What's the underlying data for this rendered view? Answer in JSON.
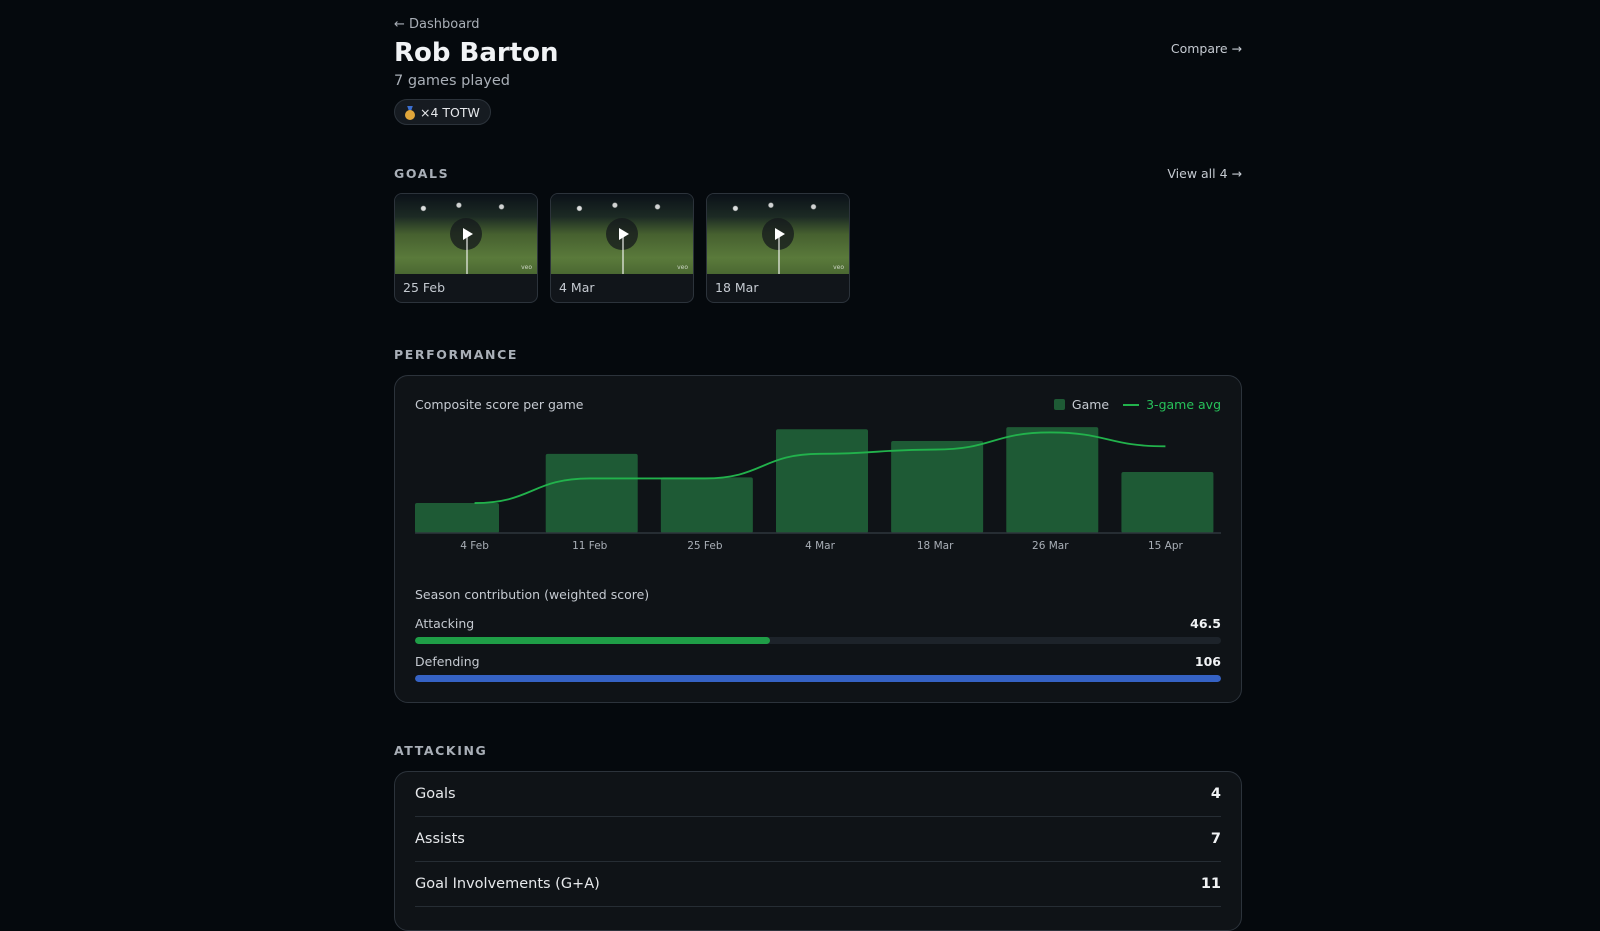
{
  "header": {
    "back_label": "← Dashboard",
    "player_name": "Rob Barton",
    "games_played": "7 games played",
    "badge_label": "×4 TOTW",
    "compare_label": "Compare →"
  },
  "goals": {
    "section_title": "GOALS",
    "view_all_label": "View all 4 →",
    "clips": [
      {
        "date": "25 Feb",
        "watermark": "veo"
      },
      {
        "date": "4 Mar",
        "watermark": "veo"
      },
      {
        "date": "18 Mar",
        "watermark": "veo"
      }
    ]
  },
  "performance": {
    "section_title": "PERFORMANCE",
    "chart_title": "Composite score per game",
    "legend": {
      "game": "Game",
      "avg": "3-game avg"
    },
    "contribution_title": "Season contribution (weighted score)",
    "bars": [
      {
        "label": "Attacking",
        "value": "46.5",
        "fraction": 0.44,
        "color": "#1f9e47"
      },
      {
        "label": "Defending",
        "value": "106",
        "fraction": 1.0,
        "color": "#3562c4"
      }
    ]
  },
  "chart_data": {
    "type": "bar",
    "categories": [
      "4 Feb",
      "11 Feb",
      "25 Feb",
      "4 Mar",
      "18 Mar",
      "26 Mar",
      "15 Apr"
    ],
    "series": [
      {
        "name": "Game",
        "values": [
          28,
          74,
          52,
          97,
          86,
          99,
          57
        ]
      },
      {
        "name": "3-game avg",
        "values": [
          28,
          51,
          51,
          74,
          78,
          94,
          81
        ]
      }
    ],
    "ylim": [
      0,
      100
    ],
    "colors": {
      "bar": "#1e5a35",
      "line": "#22b24c",
      "axis": "#2f363d",
      "tick": "#a9afb7"
    },
    "legend_position": "top-right",
    "grid": false
  },
  "attacking": {
    "section_title": "ATTACKING",
    "rows": [
      {
        "label": "Goals",
        "value": "4"
      },
      {
        "label": "Assists",
        "value": "7"
      },
      {
        "label": "Goal Involvements (G+A)",
        "value": "11"
      }
    ]
  }
}
